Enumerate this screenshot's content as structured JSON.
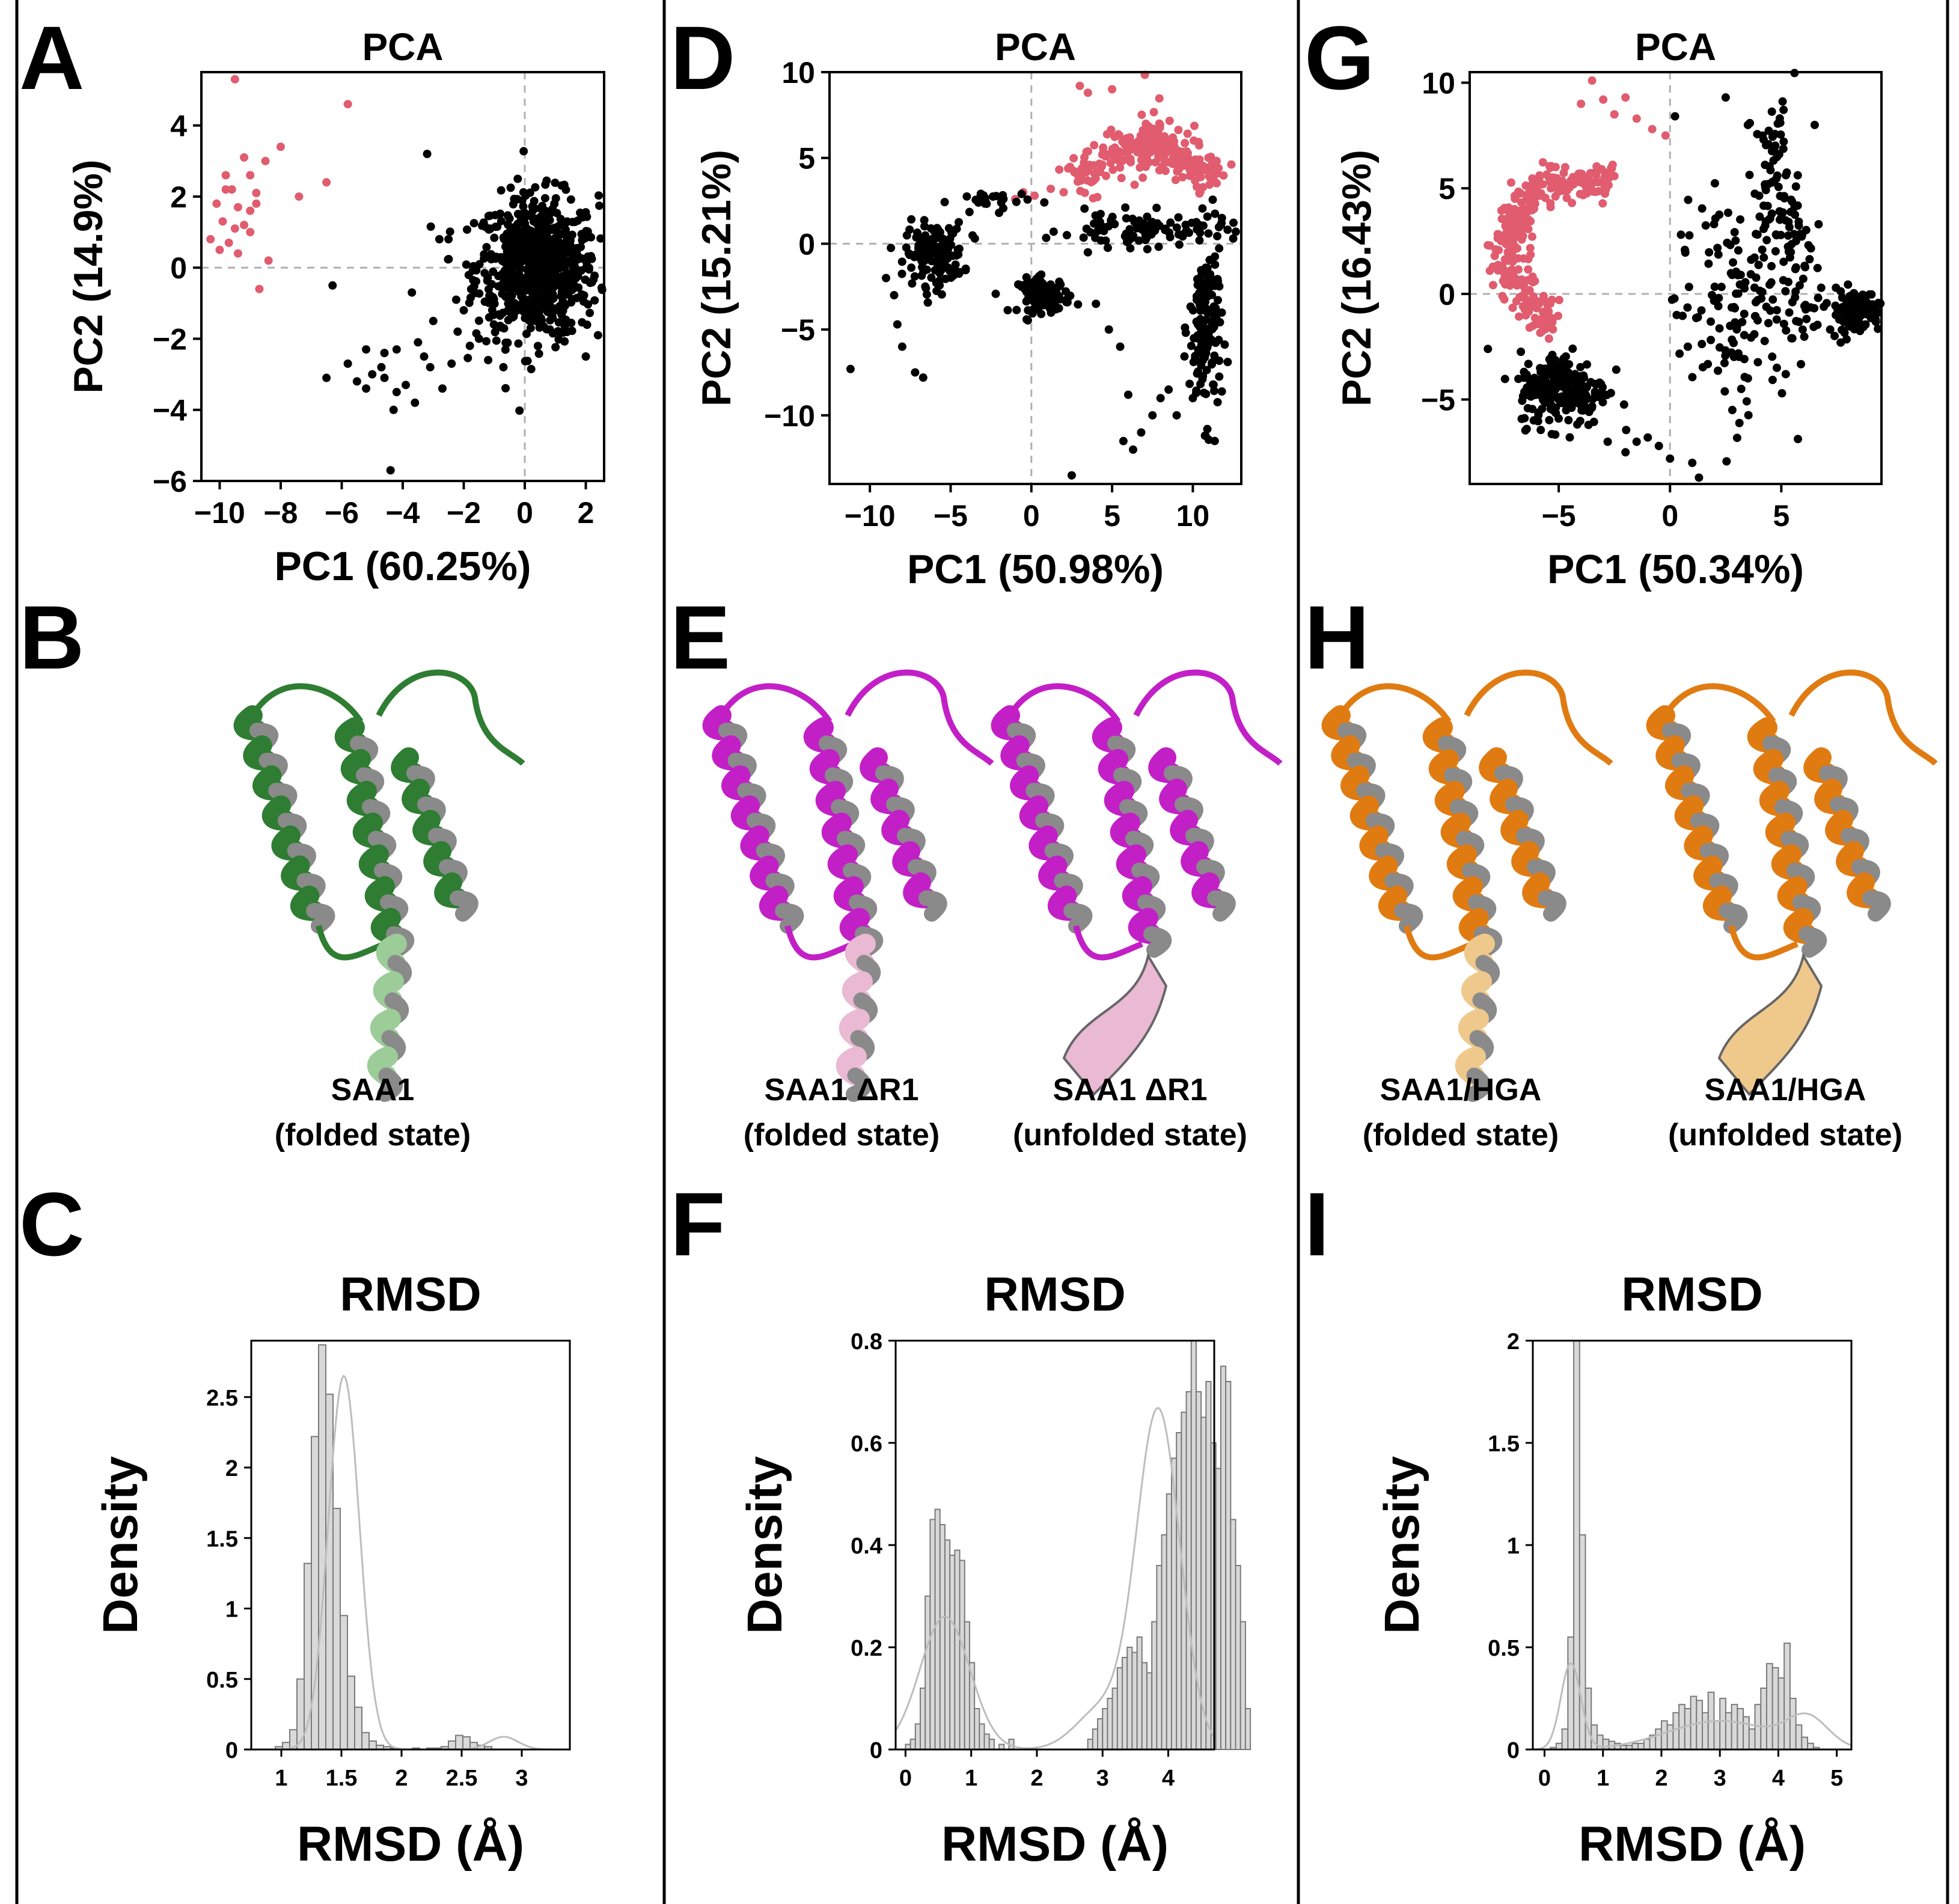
{
  "panels": {
    "A": {
      "letter": "A"
    },
    "B": {
      "letter": "B"
    },
    "C": {
      "letter": "C"
    },
    "D": {
      "letter": "D"
    },
    "E": {
      "letter": "E"
    },
    "F": {
      "letter": "F"
    },
    "G": {
      "letter": "G"
    },
    "H": {
      "letter": "H"
    },
    "I": {
      "letter": "I"
    }
  },
  "colors": {
    "cluster_a": "#e05c6e",
    "cluster_b": "#000000",
    "hist_fill": "#d9d9d9",
    "hist_stroke": "#7a7a7a",
    "kde": "#bdbdbd",
    "wt_protein": "#2e7d32",
    "wt_protein_light": "#9ccc98",
    "dr1_protein": "#c21fc7",
    "dr1_protein_light": "#eab9d3",
    "hga_protein": "#e07b12",
    "hga_protein_light": "#efc98c"
  },
  "structures": {
    "B": [
      {
        "caption_line1": "SAA1",
        "caption_line2": "(folded state)",
        "color": "wt_protein",
        "tail": "wt_protein_light",
        "icon": "protein-helix-bundle"
      }
    ],
    "E": [
      {
        "caption_line1": "SAA1 ΔR1",
        "caption_line2": "(folded state)",
        "color": "dr1_protein",
        "tail": "dr1_protein_light",
        "icon": "protein-helix-bundle"
      },
      {
        "caption_line1": "SAA1 ΔR1",
        "caption_line2": "(unfolded state)",
        "color": "dr1_protein",
        "tail": "dr1_protein_light",
        "icon": "protein-helix-bundle"
      }
    ],
    "H": [
      {
        "caption_line1": "SAA1/HGA",
        "caption_line2": "(folded state)",
        "color": "hga_protein",
        "tail": "hga_protein_light",
        "icon": "protein-helix-bundle"
      },
      {
        "caption_line1": "SAA1/HGA",
        "caption_line2": "(unfolded state)",
        "color": "hga_protein",
        "tail": "hga_protein_light",
        "icon": "protein-helix-bundle"
      }
    ]
  },
  "chart_data": [
    {
      "id": "A",
      "type": "scatter",
      "title": "PCA",
      "xlabel": "PC1 (60.25%)",
      "ylabel": "PC2 (14.9%)",
      "xlim": [
        -10.6,
        2.6
      ],
      "ylim": [
        -6.0,
        5.5
      ],
      "xticks": [
        -10,
        -8,
        -6,
        -4,
        -2,
        0,
        2
      ],
      "yticks": [
        -6,
        -4,
        -2,
        0,
        2,
        4
      ],
      "ref_lines": {
        "x": 0,
        "y": 0
      },
      "series": [
        {
          "color": "cluster_a",
          "points": [
            [
              -9.5,
              5.3
            ],
            [
              -5.8,
              4.6
            ],
            [
              -9.2,
              3.1
            ],
            [
              -8.5,
              3.0
            ],
            [
              -8.0,
              3.4
            ],
            [
              -6.5,
              2.4
            ],
            [
              -9.8,
              2.6
            ],
            [
              -9.0,
              2.6
            ],
            [
              -9.6,
              2.2
            ],
            [
              -8.8,
              2.1
            ],
            [
              -7.4,
              2.0
            ],
            [
              -10.1,
              1.8
            ],
            [
              -9.4,
              1.7
            ],
            [
              -9.9,
              1.3
            ],
            [
              -9.5,
              1.1
            ],
            [
              -9.0,
              1.0
            ],
            [
              -10.3,
              0.8
            ],
            [
              -9.7,
              0.7
            ],
            [
              -10.0,
              0.5
            ],
            [
              -9.4,
              0.4
            ],
            [
              -8.4,
              0.2
            ],
            [
              -9.0,
              1.6
            ],
            [
              -8.7,
              -0.6
            ],
            [
              -9.8,
              2.2
            ],
            [
              -9.2,
              1.2
            ],
            [
              -8.8,
              1.8
            ]
          ]
        },
        {
          "color": "cluster_b",
          "cluster": [
            {
              "cx": 0.4,
              "cy": 0.0,
              "sx": 1.0,
              "sy": 1.0,
              "n": 700
            }
          ],
          "points": [
            [
              -3.2,
              3.2
            ],
            [
              -2.8,
              0.8
            ],
            [
              -2.5,
              0.8
            ],
            [
              -6.3,
              -0.5
            ],
            [
              -3.7,
              -0.7
            ],
            [
              -2.0,
              -1.2
            ],
            [
              -3.0,
              -1.5
            ],
            [
              -5.2,
              -2.3
            ],
            [
              -4.6,
              -2.4
            ],
            [
              -4.2,
              -2.3
            ],
            [
              -3.5,
              -2.1
            ],
            [
              -2.4,
              -2.7
            ],
            [
              -2.7,
              -3.4
            ],
            [
              -5.8,
              -2.7
            ],
            [
              -5.0,
              -3.0
            ],
            [
              -4.6,
              -3.1
            ],
            [
              -4.2,
              -3.5
            ],
            [
              -6.5,
              -3.1
            ],
            [
              -5.5,
              -3.2
            ],
            [
              -4.3,
              -4.0
            ],
            [
              -3.6,
              -3.8
            ],
            [
              -3.9,
              -3.3
            ],
            [
              -4.4,
              -5.7
            ],
            [
              -4.7,
              -2.8
            ],
            [
              -5.2,
              -3.4
            ],
            [
              -3.1,
              -2.8
            ],
            [
              -1.8,
              -2.2
            ],
            [
              -1.2,
              -2.6
            ],
            [
              -0.7,
              -2.8
            ],
            [
              -1.5,
              -2.0
            ],
            [
              -3.3,
              -2.5
            ],
            [
              -2.2,
              -1.8
            ],
            [
              2.4,
              -1.9
            ],
            [
              2.0,
              -2.5
            ]
          ]
        }
      ]
    },
    {
      "id": "D",
      "type": "scatter",
      "title": "PCA",
      "xlabel": "PC1 (50.98%)",
      "ylabel": "PC2 (15.21%)",
      "xlim": [
        -12.5,
        13.0
      ],
      "ylim": [
        -14.0,
        10.0
      ],
      "xticks": [
        -10,
        -5,
        0,
        5,
        10
      ],
      "yticks": [
        -10,
        -5,
        0,
        5,
        10
      ],
      "ref_lines": {
        "x": 0,
        "y": 0
      },
      "series": [
        {
          "color": "cluster_a",
          "arc": [
            {
              "cx": 7.0,
              "cy": -1.0,
              "r": 6.5,
              "a0": 45,
              "a1": 135,
              "spread": 1.0,
              "n": 200
            },
            {
              "cx": 7.5,
              "cy": 6.0,
              "r": 2.0,
              "a0": 0,
              "a1": 360,
              "spread": 1.0,
              "n": 80
            }
          ],
          "points": [
            [
              3.0,
              9.2
            ],
            [
              3.5,
              8.8
            ],
            [
              5.0,
              9.0
            ],
            [
              -0.5,
              3.0
            ],
            [
              0.2,
              2.8
            ],
            [
              1.2,
              3.2
            ],
            [
              2.0,
              3.0
            ],
            [
              -1.0,
              2.6
            ]
          ]
        },
        {
          "color": "cluster_b",
          "cluster": [
            {
              "cx": -6.0,
              "cy": -0.6,
              "sx": 0.9,
              "sy": 0.9,
              "n": 140
            },
            {
              "cx": 0.8,
              "cy": -3.0,
              "sx": 0.8,
              "sy": 0.5,
              "n": 90
            },
            {
              "cx": -2.5,
              "cy": 2.5,
              "sx": 1.2,
              "sy": 0.3,
              "n": 25
            },
            {
              "cx": 10.8,
              "cy": -5.0,
              "sx": 0.5,
              "sy": 2.6,
              "n": 150
            },
            {
              "cx": 7.0,
              "cy": 0.8,
              "sx": 2.5,
              "sy": 0.5,
              "n": 90
            }
          ],
          "points": [
            [
              -11.2,
              -7.3
            ],
            [
              -8.3,
              -4.7
            ],
            [
              -8.5,
              -3.0
            ],
            [
              -7.2,
              -7.5
            ],
            [
              -6.7,
              -7.8
            ],
            [
              -8.0,
              -6.0
            ],
            [
              -9.0,
              -2.0
            ],
            [
              2.5,
              -13.5
            ],
            [
              5.7,
              -11.5
            ],
            [
              6.3,
              -12.0
            ],
            [
              6.8,
              -11.0
            ],
            [
              7.5,
              -10.0
            ],
            [
              8.0,
              -9.0
            ],
            [
              8.5,
              -8.5
            ],
            [
              6.0,
              -8.8
            ],
            [
              5.5,
              -6.0
            ],
            [
              4.8,
              -5.0
            ],
            [
              4.0,
              -3.5
            ],
            [
              3.5,
              -0.5
            ],
            [
              2.2,
              0.5
            ],
            [
              9.0,
              -10.0
            ],
            [
              10.0,
              -9.0
            ],
            [
              12.5,
              0.3
            ],
            [
              11.8,
              1.5
            ],
            [
              -3.5,
              0.3
            ],
            [
              -2.0,
              1.8
            ]
          ]
        }
      ]
    },
    {
      "id": "G",
      "type": "scatter",
      "title": "PCA",
      "xlabel": "PC1 (50.34%)",
      "ylabel": "PC2 (16.43%)",
      "xlim": [
        -9.0,
        9.5
      ],
      "ylim": [
        -9.0,
        10.5
      ],
      "xticks": [
        -5,
        0,
        5
      ],
      "yticks": [
        -5,
        0,
        5,
        10
      ],
      "ref_lines": {
        "x": 0,
        "y": 0
      },
      "series": [
        {
          "color": "cluster_a",
          "arc": [
            {
              "cx": -3.8,
              "cy": 2.0,
              "r": 3.5,
              "a0": 70,
              "a1": 250,
              "spread": 0.7,
              "n": 320
            }
          ],
          "points": [
            [
              -3.5,
              10.1
            ],
            [
              -2.5,
              8.5
            ],
            [
              -1.5,
              8.3
            ],
            [
              -0.8,
              7.8
            ],
            [
              -0.2,
              7.5
            ],
            [
              -4.0,
              9.0
            ],
            [
              -3.0,
              9.2
            ],
            [
              -2.0,
              9.3
            ]
          ]
        },
        {
          "color": "cluster_b",
          "cluster": [
            {
              "cx": -4.8,
              "cy": -4.5,
              "sx": 1.0,
              "sy": 0.9,
              "n": 220
            },
            {
              "cx": 8.3,
              "cy": -0.8,
              "sx": 0.6,
              "sy": 0.5,
              "n": 120
            },
            {
              "cx": 4.8,
              "cy": 5.0,
              "sx": 0.5,
              "sy": 2.0,
              "n": 80
            },
            {
              "cx": 2.8,
              "cy": -0.5,
              "sx": 1.3,
              "sy": 2.5,
              "n": 130
            },
            {
              "cx": 5.8,
              "cy": 1.0,
              "sx": 0.5,
              "sy": 2.0,
              "n": 40
            }
          ],
          "points": [
            [
              -1.5,
              -7.0
            ],
            [
              -1.0,
              -6.8
            ],
            [
              -0.5,
              -7.2
            ],
            [
              0.0,
              -7.8
            ],
            [
              1.0,
              -8.0
            ],
            [
              1.3,
              -8.7
            ],
            [
              -2.0,
              -7.5
            ],
            [
              -2.8,
              -7.0
            ],
            [
              0.3,
              -1.0
            ],
            [
              0.8,
              -2.5
            ],
            [
              3.2,
              -4.5
            ],
            [
              3.5,
              -4.0
            ],
            [
              4.8,
              -3.5
            ],
            [
              5.2,
              -3.8
            ],
            [
              2.8,
              -5.5
            ],
            [
              2.5,
              9.3
            ],
            [
              3.5,
              8.0
            ],
            [
              6.5,
              8.0
            ]
          ]
        }
      ]
    },
    {
      "id": "C",
      "type": "bar",
      "title": "RMSD",
      "xlabel": "RMSD (Å)",
      "ylabel": "Density",
      "xlim": [
        0.75,
        3.4
      ],
      "ylim": [
        0,
        2.9
      ],
      "xticks": [
        1,
        1.5,
        2,
        2.5,
        3
      ],
      "xtick_labels": [
        "1",
        "1.5",
        "2",
        "2.5",
        "3"
      ],
      "yticks": [
        0,
        0.5,
        1,
        1.5,
        2,
        2.5
      ],
      "ytick_labels": [
        "0",
        "0.5",
        "1",
        "1.5",
        "2",
        "2.5"
      ],
      "bin_start": 0.95,
      "bin_width": 0.06,
      "values": [
        0.02,
        0.05,
        0.14,
        0.5,
        1.32,
        2.22,
        2.87,
        2.52,
        1.71,
        0.95,
        0.52,
        0.3,
        0.12,
        0.06,
        0.03,
        0.02,
        0.01,
        0,
        0,
        0.01,
        0,
        0.01,
        0.01,
        0.02,
        0.06,
        0.1,
        0.09,
        0.05,
        0.03,
        0.02
      ],
      "kde": {
        "peaks": [
          {
            "mu": 1.52,
            "sigma": 0.13,
            "amp": 2.65
          },
          {
            "mu": 2.85,
            "sigma": 0.12,
            "amp": 0.09
          }
        ]
      }
    },
    {
      "id": "F",
      "type": "bar",
      "title": "RMSD",
      "xlabel": "RMSD (Å)",
      "ylabel": "Density",
      "xlim": [
        -0.15,
        4.7
      ],
      "ylim": [
        0,
        0.8
      ],
      "xticks": [
        0,
        1,
        2,
        3,
        4
      ],
      "xtick_labels": [
        "0",
        "1",
        "2",
        "3",
        "4"
      ],
      "yticks": [
        0,
        0.2,
        0.4,
        0.6,
        0.8
      ],
      "ytick_labels": [
        "0",
        "0.2",
        "0.4",
        "0.6",
        "0.8"
      ],
      "bin_start": 0.0,
      "bin_width": 0.075,
      "values": [
        0.01,
        0.02,
        0.05,
        0.12,
        0.3,
        0.45,
        0.47,
        0.44,
        0.41,
        0.38,
        0.39,
        0.37,
        0.25,
        0.17,
        0.08,
        0.05,
        0.03,
        0.02,
        0,
        0.01,
        0,
        0.02,
        0,
        0,
        0,
        0,
        0,
        0,
        0,
        0,
        0,
        0,
        0,
        0,
        0,
        0,
        0,
        0.02,
        0.04,
        0.06,
        0.08,
        0.1,
        0.12,
        0.16,
        0.18,
        0.2,
        0.19,
        0.22,
        0.17,
        0.15,
        0.25,
        0.36,
        0.42,
        0.5,
        0.57,
        0.62,
        0.66,
        0.7,
        0.8,
        0.7,
        0.65,
        0.72,
        0.6,
        0.55,
        0.75,
        0.72,
        0.45,
        0.36,
        0.25,
        0.08
      ],
      "kde": {
        "peaks": [
          {
            "mu": 0.6,
            "sigma": 0.38,
            "amp": 0.26
          },
          {
            "mu": 3.85,
            "sigma": 0.33,
            "amp": 0.66
          },
          {
            "mu": 3.0,
            "sigma": 0.4,
            "amp": 0.08
          }
        ]
      }
    },
    {
      "id": "I",
      "type": "bar",
      "title": "RMSD",
      "xlabel": "RMSD (Å)",
      "ylabel": "Density",
      "xlim": [
        -0.2,
        5.25
      ],
      "ylim": [
        0,
        2.0
      ],
      "xticks": [
        0,
        1,
        2,
        3,
        4,
        5
      ],
      "xtick_labels": [
        "0",
        "1",
        "2",
        "3",
        "4",
        "5"
      ],
      "yticks": [
        0,
        0.5,
        1,
        1.5,
        2
      ],
      "ytick_labels": [
        "0",
        "0.5",
        "1",
        "1.5",
        "2"
      ],
      "bin_start": 0.1,
      "bin_width": 0.1,
      "values": [
        0.01,
        0.03,
        0.1,
        0.55,
        2.0,
        1.05,
        0.3,
        0.12,
        0.07,
        0.05,
        0.04,
        0.03,
        0.02,
        0.02,
        0.03,
        0.03,
        0.05,
        0.07,
        0.1,
        0.14,
        0.12,
        0.18,
        0.22,
        0.2,
        0.26,
        0.24,
        0.18,
        0.28,
        0.14,
        0.25,
        0.18,
        0.22,
        0.2,
        0.16,
        0.1,
        0.22,
        0.3,
        0.42,
        0.4,
        0.35,
        0.52,
        0.25,
        0.12,
        0.06,
        0.03,
        0.01
      ],
      "kde": {
        "peaks": [
          {
            "mu": 0.45,
            "sigma": 0.17,
            "amp": 0.42
          },
          {
            "mu": 3.0,
            "sigma": 0.9,
            "amp": 0.14
          },
          {
            "mu": 4.5,
            "sigma": 0.35,
            "amp": 0.14
          }
        ]
      }
    }
  ]
}
